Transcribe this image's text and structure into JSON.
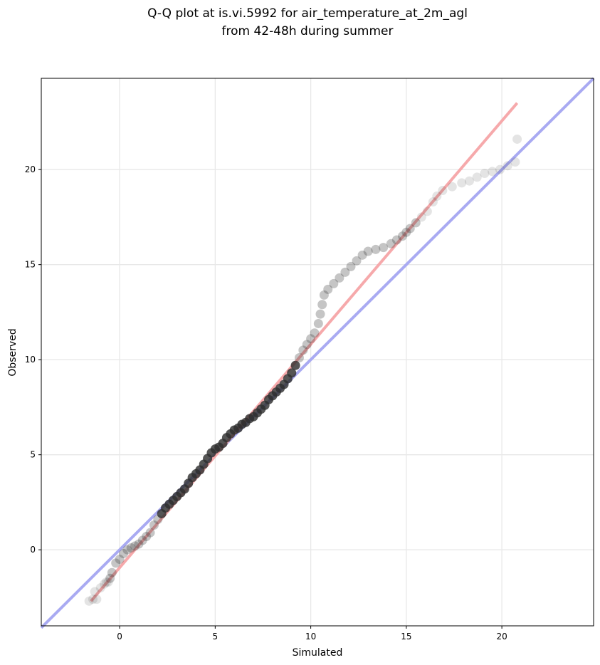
{
  "chart_data": {
    "type": "scatter",
    "title_lines": [
      "Q-Q plot at is.vi.5992 for air_temperature_at_2m_agl",
      "from 42-48h during summer"
    ],
    "xlabel": "Simulated",
    "ylabel": "Observed",
    "xlim": [
      -4.1,
      24.8
    ],
    "ylim": [
      -4.0,
      24.8
    ],
    "xticks": [
      0,
      5,
      10,
      15,
      20
    ],
    "yticks": [
      0,
      5,
      10,
      15,
      20
    ],
    "grid": true,
    "colors": {
      "points": "#2f2f2f",
      "identity_line": "#a9aaf2",
      "fit_line": "#f6a9ab",
      "dense_core": "#1a1a6e"
    },
    "identity_line": {
      "x": [
        -4.1,
        24.8
      ],
      "y": [
        -4.1,
        24.8
      ]
    },
    "fit_line": {
      "x": [
        -1.5,
        20.8
      ],
      "y": [
        -2.7,
        23.5
      ]
    },
    "series": [
      {
        "values_xy": [
          [
            -1.6,
            -2.7
          ],
          [
            -1.4,
            -2.6
          ],
          [
            -1.2,
            -2.6
          ],
          [
            -1.3,
            -2.2
          ],
          [
            -1.0,
            -2.0
          ],
          [
            -0.8,
            -1.8
          ],
          [
            -0.6,
            -1.7
          ],
          [
            -0.5,
            -1.5
          ],
          [
            -0.7,
            -1.7
          ],
          [
            -0.4,
            -1.2
          ],
          [
            -0.2,
            -0.7
          ],
          [
            0.0,
            -0.5
          ],
          [
            0.2,
            -0.2
          ],
          [
            0.4,
            0.0
          ],
          [
            0.6,
            0.1
          ],
          [
            0.8,
            0.2
          ],
          [
            1.0,
            0.3
          ],
          [
            1.2,
            0.5
          ],
          [
            1.4,
            0.7
          ],
          [
            1.6,
            0.9
          ],
          [
            1.8,
            1.3
          ],
          [
            2.0,
            1.6
          ],
          [
            2.2,
            1.9
          ],
          [
            2.4,
            2.2
          ],
          [
            2.6,
            2.4
          ],
          [
            2.8,
            2.6
          ],
          [
            3.0,
            2.8
          ],
          [
            3.2,
            3.0
          ],
          [
            3.4,
            3.2
          ],
          [
            3.6,
            3.5
          ],
          [
            3.8,
            3.8
          ],
          [
            4.0,
            4.0
          ],
          [
            4.2,
            4.2
          ],
          [
            4.4,
            4.5
          ],
          [
            4.6,
            4.8
          ],
          [
            4.8,
            5.1
          ],
          [
            5.0,
            5.3
          ],
          [
            5.2,
            5.4
          ],
          [
            5.4,
            5.6
          ],
          [
            5.6,
            5.9
          ],
          [
            5.8,
            6.1
          ],
          [
            6.0,
            6.3
          ],
          [
            6.2,
            6.4
          ],
          [
            6.4,
            6.6
          ],
          [
            6.6,
            6.7
          ],
          [
            6.8,
            6.9
          ],
          [
            7.0,
            7.0
          ],
          [
            7.2,
            7.2
          ],
          [
            7.4,
            7.4
          ],
          [
            7.6,
            7.6
          ],
          [
            7.8,
            7.9
          ],
          [
            8.0,
            8.1
          ],
          [
            8.2,
            8.3
          ],
          [
            8.4,
            8.5
          ],
          [
            8.6,
            8.7
          ],
          [
            8.8,
            9.0
          ],
          [
            9.0,
            9.3
          ],
          [
            9.2,
            9.7
          ],
          [
            9.4,
            10.1
          ],
          [
            9.6,
            10.5
          ],
          [
            9.8,
            10.8
          ],
          [
            10.0,
            11.1
          ],
          [
            10.2,
            11.4
          ],
          [
            10.4,
            11.9
          ],
          [
            10.5,
            12.4
          ],
          [
            10.6,
            12.9
          ],
          [
            10.7,
            13.4
          ],
          [
            10.9,
            13.7
          ],
          [
            11.2,
            14.0
          ],
          [
            11.5,
            14.3
          ],
          [
            11.8,
            14.6
          ],
          [
            12.1,
            14.9
          ],
          [
            12.4,
            15.2
          ],
          [
            12.7,
            15.5
          ],
          [
            13.0,
            15.7
          ],
          [
            13.4,
            15.8
          ],
          [
            13.8,
            15.9
          ],
          [
            14.2,
            16.1
          ],
          [
            14.5,
            16.3
          ],
          [
            14.8,
            16.5
          ],
          [
            15.0,
            16.7
          ],
          [
            15.2,
            16.9
          ],
          [
            15.5,
            17.2
          ],
          [
            15.8,
            17.5
          ],
          [
            16.1,
            17.8
          ],
          [
            16.4,
            18.3
          ],
          [
            16.6,
            18.6
          ],
          [
            16.9,
            18.9
          ],
          [
            17.4,
            19.1
          ],
          [
            17.9,
            19.3
          ],
          [
            18.3,
            19.4
          ],
          [
            18.7,
            19.6
          ],
          [
            19.1,
            19.8
          ],
          [
            19.5,
            19.9
          ],
          [
            19.9,
            20.0
          ],
          [
            20.3,
            20.2
          ],
          [
            20.7,
            20.4
          ],
          [
            20.8,
            21.6
          ]
        ]
      }
    ]
  }
}
